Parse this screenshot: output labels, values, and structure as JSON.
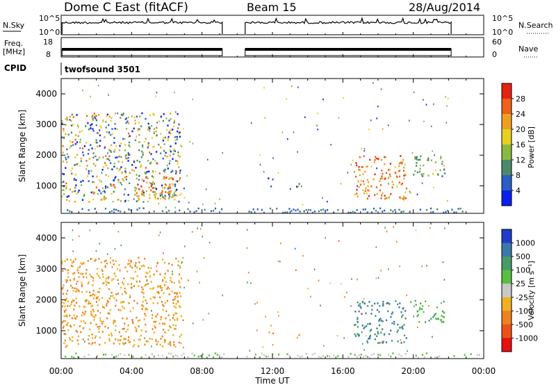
{
  "header": {
    "station": "Dome C East (fitACF)",
    "beam": "Beam 15",
    "date": "28/Aug/2014"
  },
  "strips": {
    "nsky_label": "N.Sky",
    "nsky_ticks": [
      "10^5",
      "10^0"
    ],
    "nsky_right_ticks": [
      "10^5",
      "10^0"
    ],
    "nsearch_label": "N.Search",
    "freq_label": "Freq.",
    "freq_unit": "[MHz]",
    "freq_ticks": [
      "18",
      "8"
    ],
    "nave_ticks": [
      "60",
      "0"
    ],
    "nave_label": "Nave",
    "cpid_label": "CPID",
    "cpid_value": "twofsound 3501"
  },
  "axes": {
    "xlabel": "Time UT",
    "xticks": [
      "00:00",
      "04:00",
      "08:00",
      "12:00",
      "16:00",
      "20:00",
      "00:00"
    ],
    "ylabel": "Slant Range [km]",
    "yticks": [
      "1000",
      "2000",
      "3000",
      "4000"
    ]
  },
  "colorbars": {
    "power": {
      "label": "Power [dB]",
      "ticks": [
        "4",
        "8",
        "12",
        "16",
        "20",
        "24",
        "28"
      ],
      "colors": [
        "#0a1ef0",
        "#2a5fc8",
        "#4a8a6a",
        "#8ab840",
        "#e8d020",
        "#f0a020",
        "#f06018",
        "#e82010"
      ]
    },
    "velocity": {
      "label": "Velocity [m s⁻¹]",
      "ticks": [
        "1000",
        "500",
        "100",
        "25",
        "-25",
        "-100",
        "-500",
        "-1000"
      ],
      "colors": [
        "#1f3ccc",
        "#3a7aa8",
        "#4a9a6a",
        "#58c040",
        "#c8c8c8",
        "#f0b020",
        "#f08020",
        "#f05018",
        "#e81010"
      ]
    }
  },
  "chart_data": [
    {
      "type": "heatmap",
      "title": "Power",
      "xlabel": "Time UT",
      "ylabel": "Slant Range [km]",
      "xlim": [
        0,
        24
      ],
      "ylim": [
        100,
        4500
      ],
      "colorbar_range": [
        0,
        30
      ],
      "regions": [
        {
          "t0": 0.0,
          "t1": 6.8,
          "r0": 500,
          "r1": 3400,
          "level": "mixed"
        },
        {
          "t0": 4.2,
          "t1": 6.4,
          "r0": 600,
          "r1": 1300,
          "level": 28
        },
        {
          "t0": 11.7,
          "t1": 12.0,
          "r0": 900,
          "r1": 1300,
          "level": 8
        },
        {
          "t0": 13.3,
          "t1": 13.5,
          "r0": 800,
          "r1": 1100,
          "level": 8
        },
        {
          "t0": 16.6,
          "t1": 19.6,
          "r0": 600,
          "r1": 2000,
          "level": 28
        },
        {
          "t0": 19.8,
          "t1": 21.8,
          "r0": 1300,
          "r1": 2000,
          "level": 16
        }
      ]
    },
    {
      "type": "heatmap",
      "title": "Velocity",
      "xlabel": "Time UT",
      "ylabel": "Slant Range [km]",
      "xlim": [
        0,
        24
      ],
      "ylim": [
        100,
        4500
      ],
      "colorbar_range": [
        -1000,
        1000
      ],
      "regions": [
        {
          "t0": 0.0,
          "t1": 6.8,
          "r0": 500,
          "r1": 3400,
          "level": -100
        },
        {
          "t0": 11.7,
          "t1": 12.0,
          "r0": 900,
          "r1": 1300,
          "level": -100
        },
        {
          "t0": 13.3,
          "t1": 13.5,
          "r0": 800,
          "r1": 1100,
          "level": -100
        },
        {
          "t0": 16.6,
          "t1": 19.6,
          "r0": 600,
          "r1": 2000,
          "level": 500
        },
        {
          "t0": 19.8,
          "t1": 21.8,
          "r0": 1300,
          "r1": 2000,
          "level": 100
        }
      ]
    }
  ]
}
